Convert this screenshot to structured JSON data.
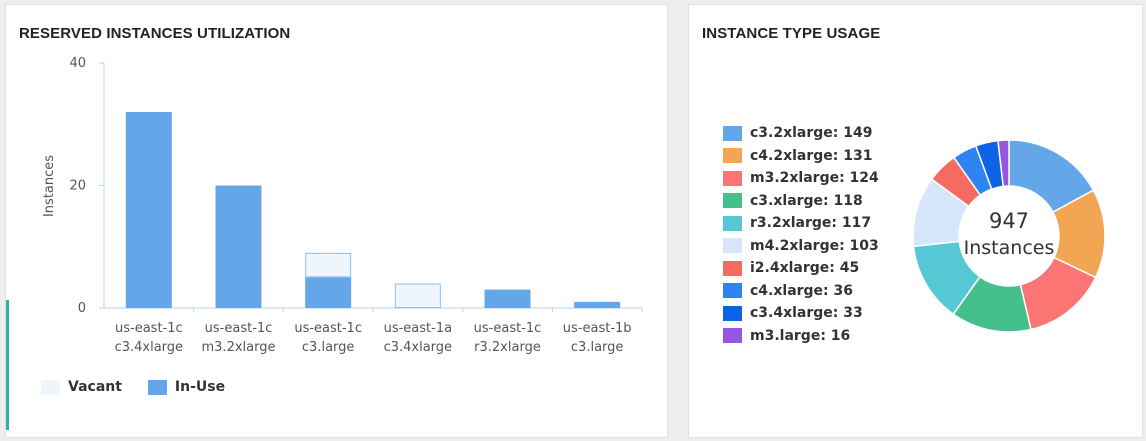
{
  "colors": {
    "in_use": "#64a7e8",
    "vacant": "#eef5fd",
    "vacant_border": "#8ec0ec",
    "axis": "#b8d3ea",
    "accent": "#2bb5a6"
  },
  "utilization": {
    "title": "RESERVED INSTANCES UTILIZATION",
    "legend": [
      {
        "label": "Vacant",
        "key": "vacant"
      },
      {
        "label": "In-Use",
        "key": "in_use"
      }
    ]
  },
  "type_usage": {
    "title": "INSTANCE TYPE USAGE",
    "center_value": "947",
    "center_label": "Instances"
  },
  "chart_data": [
    {
      "type": "bar",
      "title": "RESERVED INSTANCES UTILIZATION",
      "xlabel": "",
      "ylabel": "Instances",
      "ylim": [
        0,
        40
      ],
      "yticks": [
        0,
        20,
        40
      ],
      "stacked": true,
      "categories": [
        [
          "us-east-1c",
          "c3.4xlarge"
        ],
        [
          "us-east-1c",
          "m3.2xlarge"
        ],
        [
          "us-east-1c",
          "c3.large"
        ],
        [
          "us-east-1a",
          "c3.4xlarge"
        ],
        [
          "us-east-1c",
          "r3.2xlarge"
        ],
        [
          "us-east-1b",
          "c3.large"
        ]
      ],
      "series": [
        {
          "name": "In-Use",
          "values": [
            32,
            20,
            5,
            0,
            3,
            1
          ]
        },
        {
          "name": "Vacant",
          "values": [
            0,
            0,
            4,
            4,
            0,
            0
          ]
        }
      ],
      "legend": "bottom-left",
      "grid": false
    },
    {
      "type": "pie",
      "title": "INSTANCE TYPE USAGE",
      "donut": true,
      "total": 947,
      "legend": "left",
      "slices": [
        {
          "label": "c3.2xlarge",
          "value": 149,
          "color": "#64a7e8"
        },
        {
          "label": "c4.2xlarge",
          "value": 131,
          "color": "#f2a553"
        },
        {
          "label": "m3.2xlarge",
          "value": 124,
          "color": "#fa7573"
        },
        {
          "label": "c3.xlarge",
          "value": 118,
          "color": "#46c08a"
        },
        {
          "label": "r3.2xlarge",
          "value": 117,
          "color": "#56c8d3"
        },
        {
          "label": "m4.2xlarge",
          "value": 103,
          "color": "#d6e6fb"
        },
        {
          "label": "i2.4xlarge",
          "value": 45,
          "color": "#f46b62"
        },
        {
          "label": "c4.xlarge",
          "value": 36,
          "color": "#2e85f2"
        },
        {
          "label": "c3.4xlarge",
          "value": 33,
          "color": "#0d63e8"
        },
        {
          "label": "m3.large",
          "value": 16,
          "color": "#9655e2"
        }
      ]
    }
  ]
}
